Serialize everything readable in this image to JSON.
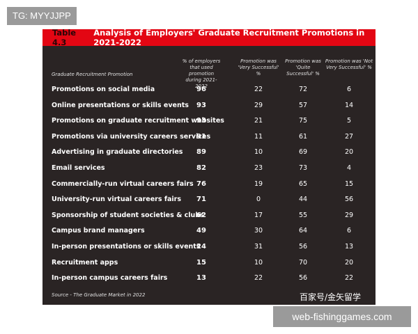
{
  "overlay": {
    "top_left_tag": "TG: MYYJJPP",
    "bottom_right_tag": "web-fishinggames.com",
    "chinese_watermark": "百家号/金矢留学"
  },
  "table": {
    "number": "Table 4.3",
    "title": "Analysis of Employers' Graduate Recruitment Promotions in 2021-2022",
    "headers": {
      "col0": "Graduate Recruitment Promotion",
      "col1": "% of employers that used promotion during 2021-2022",
      "col2": "Promotion was 'Very Successful' %",
      "col3": "Promotion was 'Quite Successful' %",
      "col4": "Promotion was 'Not Very Successful' %"
    },
    "rows": [
      {
        "name": "Promotions on social media",
        "used": "96",
        "very": "22",
        "quite": "72",
        "not_very": "6"
      },
      {
        "name": "Online presentations or skills events",
        "used": "93",
        "very": "29",
        "quite": "57",
        "not_very": "14"
      },
      {
        "name": "Promotions on graduate recruitment websites",
        "used": "93",
        "very": "21",
        "quite": "75",
        "not_very": "5"
      },
      {
        "name": "Promotions via university careers services",
        "used": "91",
        "very": "11",
        "quite": "61",
        "not_very": "27"
      },
      {
        "name": "Advertising in graduate directories",
        "used": "89",
        "very": "10",
        "quite": "69",
        "not_very": "20"
      },
      {
        "name": "Email services",
        "used": "82",
        "very": "23",
        "quite": "73",
        "not_very": "4"
      },
      {
        "name": "Commercially-run virtual careers fairs",
        "used": "76",
        "very": "19",
        "quite": "65",
        "not_very": "15"
      },
      {
        "name": "University-run virtual careers fairs",
        "used": "71",
        "very": "0",
        "quite": "44",
        "not_very": "56"
      },
      {
        "name": "Sponsorship of student societies & clubs",
        "used": "62",
        "very": "17",
        "quite": "55",
        "not_very": "29"
      },
      {
        "name": "Campus brand managers",
        "used": "49",
        "very": "30",
        "quite": "64",
        "not_very": "6"
      },
      {
        "name": "In-person presentations or skills events",
        "used": "24",
        "very": "31",
        "quite": "56",
        "not_very": "13"
      },
      {
        "name": "Recruitment apps",
        "used": "15",
        "very": "10",
        "quite": "70",
        "not_very": "20"
      },
      {
        "name": "In-person campus careers fairs",
        "used": "13",
        "very": "22",
        "quite": "56",
        "not_very": "22"
      }
    ],
    "source": "Source - The Graduate Market in 2022"
  }
}
